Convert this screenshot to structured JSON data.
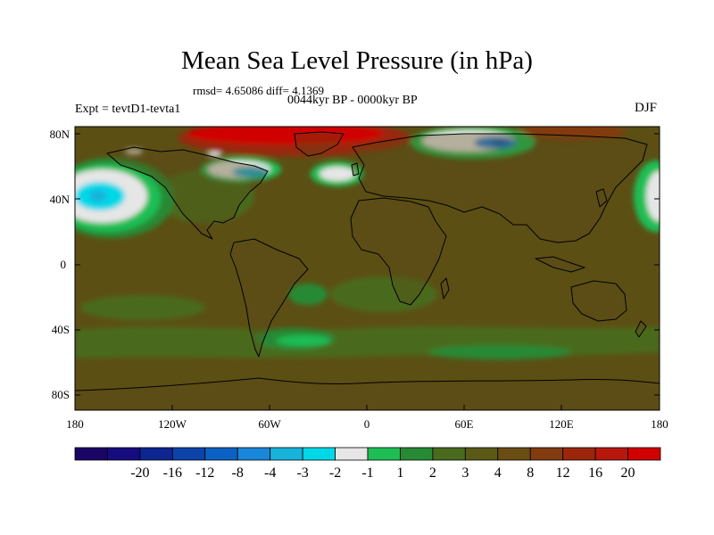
{
  "title": "Mean Sea Level Pressure (in hPa)",
  "stats_text": "rmsd= 4.65086 diff= 4.1369",
  "period_text": "0044kyr BP - 0000kyr BP",
  "experiment_text": "Expt = tevtD1-tevta1",
  "season_text": "DJF",
  "map": {
    "latitude_labels": [
      "80N",
      "40N",
      "0",
      "40S",
      "80S"
    ],
    "longitude_labels": [
      "180",
      "120W",
      "60W",
      "0",
      "60E",
      "120E",
      "180"
    ]
  },
  "colorbar": {
    "colors": [
      "#1a0566",
      "#170c7e",
      "#0d2690",
      "#0b43a9",
      "#0b62c4",
      "#1a86d9",
      "#17b3db",
      "#00d8e8",
      "#e6e6e6",
      "#1fbe54",
      "#278a35",
      "#4a6a1e",
      "#5a5a16",
      "#6a4d12",
      "#833b10",
      "#9b260c",
      "#b8170c",
      "#d10000"
    ],
    "labels": [
      "-20",
      "-16",
      "-12",
      "-8",
      "-4",
      "-3",
      "-2",
      "-1",
      "1",
      "2",
      "3",
      "4",
      "8",
      "12",
      "16",
      "20"
    ]
  },
  "colors": {
    "background_field": "#5c4f14",
    "land_overlay": "#5a4a16",
    "coastline": "#000000"
  }
}
